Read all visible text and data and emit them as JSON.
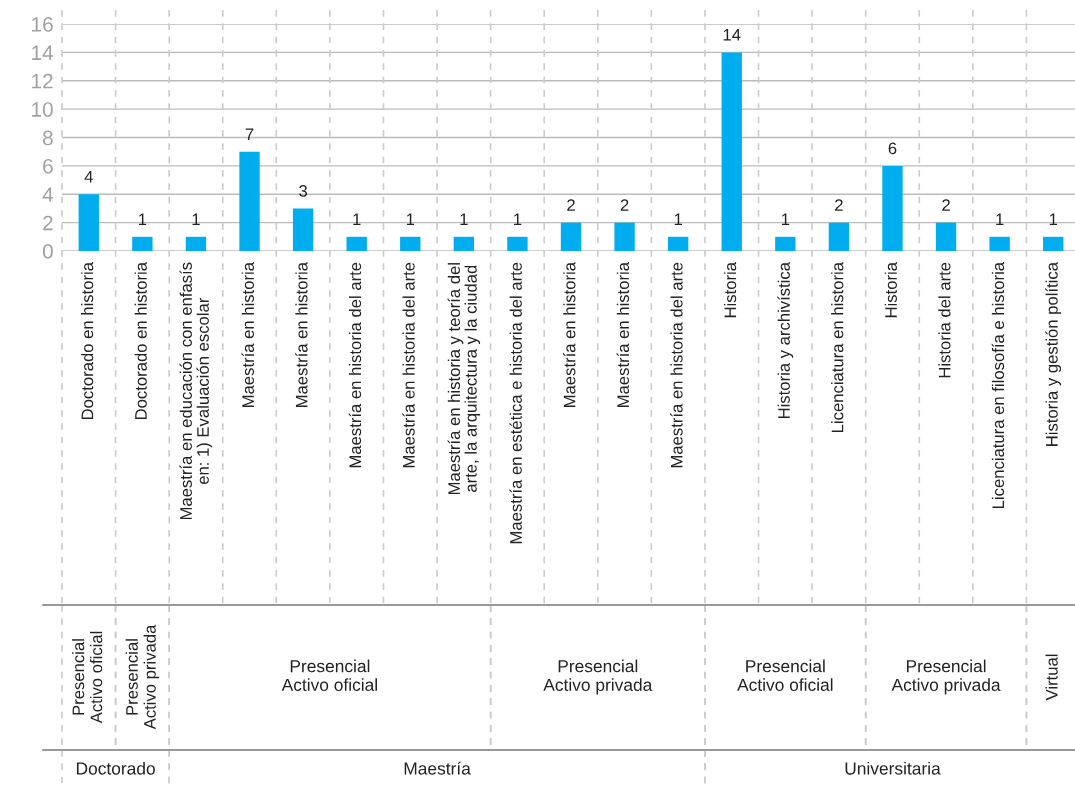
{
  "chart_data": {
    "type": "bar",
    "categories": [
      "Doctorado en historia",
      "Doctorado en historia",
      "Maestría en educación con enfasís en: 1) Evaluación escolar",
      "Maestría en historia",
      "Maestría en historia",
      "Maestría en historia del arte",
      "Maestría en historia del arte",
      "Maestría en historia y teoría del arte, la arquitectura y la ciudad",
      "Maestría en estética e historia del arte",
      "Maestría en historia",
      "Maestría en historia",
      "Maestría en historia del arte",
      "Historia",
      "Historia y archivística",
      "Licenciatura en historia",
      "Historia",
      "Historia del arte",
      "Licenciatura en filosofía e historia",
      "Historia y gestión política"
    ],
    "values": [
      4,
      1,
      1,
      7,
      3,
      1,
      1,
      1,
      1,
      2,
      2,
      1,
      14,
      1,
      2,
      6,
      2,
      1,
      1
    ],
    "color": "#00aeef",
    "ylim": [
      0,
      16
    ],
    "yticks": [
      0,
      2,
      4,
      6,
      8,
      10,
      12,
      14,
      16
    ],
    "grid": "y",
    "data_labels": true,
    "annotations": [
      "Presencial\nActivo oficial",
      "Presencial\nActivo privada",
      "Presencial\nActivo oficial",
      "Presencial\nActivo privada",
      "Presencial\nActivo oficial",
      "Presencial\nActivo privada",
      "Virtual",
      "Doctorado",
      "Maestría",
      "Universitaria"
    ]
  }
}
